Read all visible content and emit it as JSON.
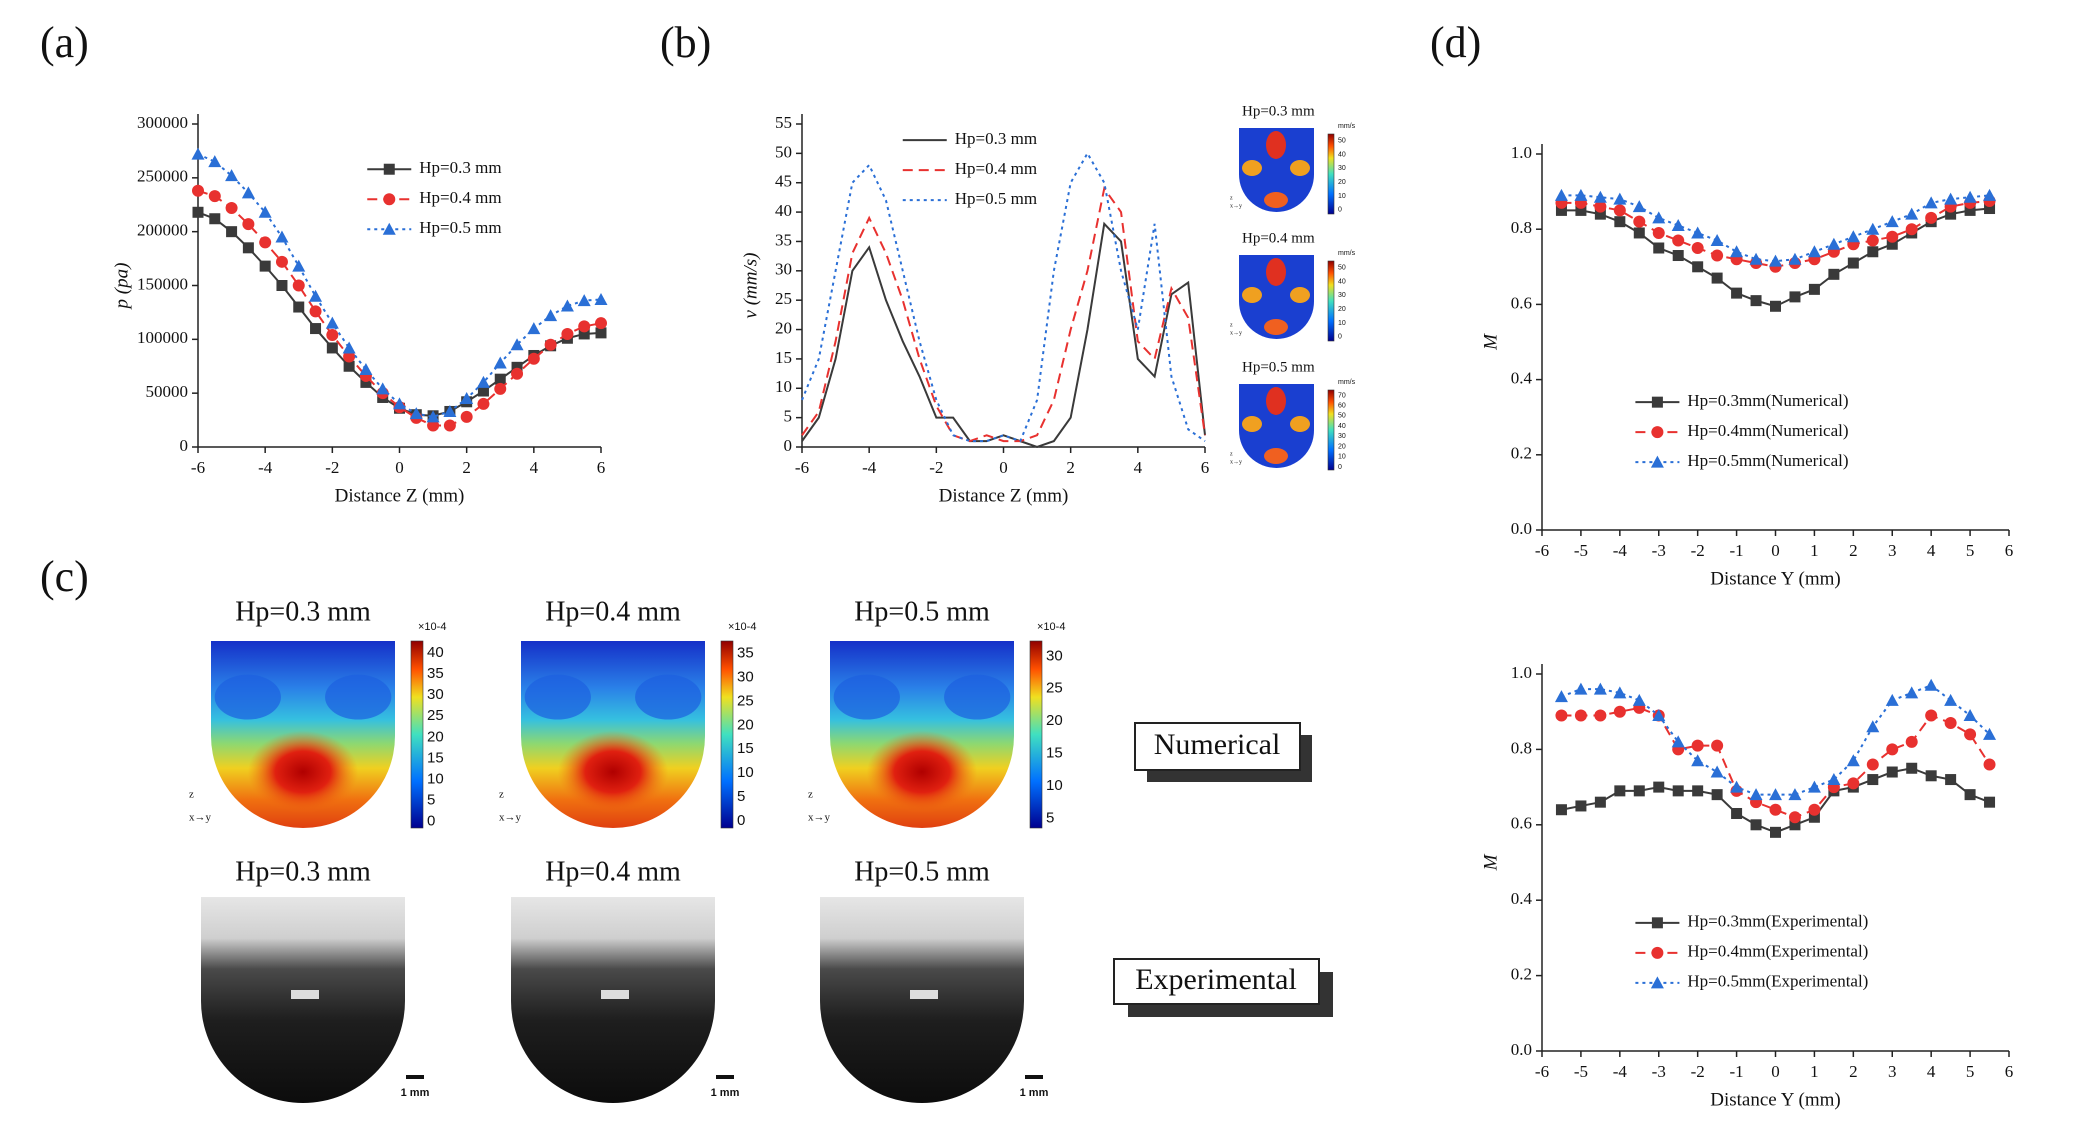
{
  "panel_labels": [
    "(a)",
    "(b)",
    "(c)",
    "(d)"
  ],
  "chart_data": [
    {
      "type": "line",
      "x_label": "Distance Z (mm)",
      "y_label": "p (pa)",
      "legend": "upper center",
      "x": [
        -6,
        -5.5,
        -5,
        -4.5,
        -4,
        -3.5,
        -3,
        -2.5,
        -2,
        -1.5,
        -1,
        -0.5,
        0,
        0.5,
        1,
        1.5,
        2,
        2.5,
        3,
        3.5,
        4,
        4.5,
        5,
        5.5,
        6
      ],
      "xlim": [
        -6,
        6
      ],
      "xticks": [
        -6,
        -4,
        -2,
        0,
        2,
        4,
        6
      ],
      "ylim": [
        0,
        300000
      ],
      "yticks": [
        0,
        50000,
        100000,
        150000,
        200000,
        250000,
        300000
      ],
      "series": [
        {
          "name": "Hp=0.3 mm",
          "color": "#3a3a3a",
          "style": "solid",
          "marker": "square",
          "values": [
            218000,
            212000,
            200000,
            185000,
            168000,
            150000,
            130000,
            110000,
            92000,
            75000,
            60000,
            46000,
            36000,
            30000,
            29000,
            33000,
            42000,
            52000,
            63000,
            74000,
            85000,
            94000,
            101000,
            105000,
            106000
          ]
        },
        {
          "name": "Hp=0.4 mm",
          "color": "#e8312f",
          "style": "dash",
          "marker": "circle",
          "values": [
            238000,
            233000,
            222000,
            207000,
            190000,
            172000,
            150000,
            126000,
            104000,
            84000,
            66000,
            50000,
            37000,
            27000,
            20000,
            20000,
            28000,
            40000,
            54000,
            68000,
            82000,
            95000,
            105000,
            112000,
            115000
          ]
        },
        {
          "name": "Hp=0.5 mm",
          "color": "#2a6fd6",
          "style": "dot",
          "marker": "triangle",
          "values": [
            272000,
            265000,
            252000,
            236000,
            218000,
            195000,
            168000,
            140000,
            115000,
            92000,
            72000,
            54000,
            40000,
            31000,
            28000,
            33000,
            45000,
            60000,
            78000,
            95000,
            110000,
            122000,
            131000,
            136000,
            137000
          ]
        }
      ]
    },
    {
      "type": "line",
      "x_label": "Distance Z (mm)",
      "y_label": "v (mm/s)",
      "legend": "upper left",
      "x": [
        -6,
        -5.5,
        -5,
        -4.5,
        -4,
        -3.5,
        -3,
        -2.5,
        -2,
        -1.5,
        -1,
        -0.5,
        0,
        0.5,
        1,
        1.5,
        2,
        2.5,
        3,
        3.5,
        4,
        4.5,
        5,
        5.5,
        6
      ],
      "xlim": [
        -6,
        6
      ],
      "xticks": [
        -6,
        -4,
        -2,
        0,
        2,
        4,
        6
      ],
      "ylim": [
        0,
        55
      ],
      "yticks": [
        0,
        5,
        10,
        15,
        20,
        25,
        30,
        35,
        40,
        45,
        50,
        55
      ],
      "series": [
        {
          "name": "Hp=0.3 mm",
          "color": "#3a3a3a",
          "style": "solid",
          "values": [
            1,
            5,
            15,
            30,
            34,
            25,
            18,
            12,
            5,
            5,
            1,
            1,
            2,
            1,
            0,
            1,
            5,
            20,
            38,
            35,
            15,
            12,
            26,
            28,
            2
          ]
        },
        {
          "name": "Hp=0.4 mm",
          "color": "#e8312f",
          "style": "dash",
          "values": [
            2,
            6,
            18,
            33,
            39,
            33,
            25,
            15,
            7,
            2,
            1,
            2,
            1,
            1,
            2,
            8,
            20,
            30,
            44,
            40,
            18,
            15,
            27,
            22,
            2
          ]
        },
        {
          "name": "Hp=0.5 mm",
          "color": "#2a6fd6",
          "style": "dot",
          "values": [
            8,
            15,
            30,
            45,
            48,
            42,
            30,
            18,
            8,
            2,
            1,
            1,
            2,
            1,
            8,
            30,
            45,
            50,
            45,
            30,
            20,
            38,
            12,
            3,
            1
          ]
        }
      ]
    },
    {
      "type": "line",
      "x_label": "Distance Y (mm)",
      "y_label": "M",
      "legend": "lower center",
      "x": [
        -5.5,
        -5,
        -4.5,
        -4,
        -3.5,
        -3,
        -2.5,
        -2,
        -1.5,
        -1,
        -0.5,
        0,
        0.5,
        1,
        1.5,
        2,
        2.5,
        3,
        3.5,
        4,
        4.5,
        5,
        5.5
      ],
      "xlim": [
        -6,
        6
      ],
      "xticks": [
        -6,
        -5,
        -4,
        -3,
        -2,
        -1,
        0,
        1,
        2,
        3,
        4,
        5,
        6
      ],
      "ylim": [
        0,
        1
      ],
      "yticks": [
        {
          "value": 0,
          "label": "0.0"
        },
        0.2,
        0.4,
        0.6,
        0.8,
        {
          "value": 1,
          "label": "1.0"
        }
      ],
      "series": [
        {
          "name": "Hp=0.3mm(Numerical)",
          "color": "#3a3a3a",
          "style": "solid",
          "marker": "square",
          "values": [
            0.85,
            0.85,
            0.84,
            0.82,
            0.79,
            0.75,
            0.73,
            0.7,
            0.67,
            0.63,
            0.61,
            0.595,
            0.62,
            0.64,
            0.68,
            0.71,
            0.74,
            0.76,
            0.79,
            0.82,
            0.84,
            0.85,
            0.855
          ]
        },
        {
          "name": "Hp=0.4mm(Numerical)",
          "color": "#e8312f",
          "style": "dash",
          "marker": "circle",
          "values": [
            0.87,
            0.87,
            0.86,
            0.85,
            0.82,
            0.79,
            0.77,
            0.75,
            0.73,
            0.72,
            0.71,
            0.7,
            0.71,
            0.72,
            0.74,
            0.76,
            0.77,
            0.78,
            0.8,
            0.83,
            0.86,
            0.87,
            0.875
          ]
        },
        {
          "name": "Hp=0.5mm(Numerical)",
          "color": "#2a6fd6",
          "style": "dot",
          "marker": "triangle",
          "values": [
            0.89,
            0.89,
            0.885,
            0.88,
            0.86,
            0.83,
            0.81,
            0.79,
            0.77,
            0.74,
            0.72,
            0.715,
            0.72,
            0.74,
            0.76,
            0.78,
            0.8,
            0.82,
            0.84,
            0.87,
            0.88,
            0.885,
            0.89
          ]
        }
      ]
    },
    {
      "type": "line",
      "x_label": "Distance Y (mm)",
      "y_label": "M",
      "legend": "lower center",
      "x": [
        -5.5,
        -5,
        -4.5,
        -4,
        -3.5,
        -3,
        -2.5,
        -2,
        -1.5,
        -1,
        -0.5,
        0,
        0.5,
        1,
        1.5,
        2,
        2.5,
        3,
        3.5,
        4,
        4.5,
        5,
        5.5
      ],
      "xlim": [
        -6,
        6
      ],
      "xticks": [
        -6,
        -5,
        -4,
        -3,
        -2,
        -1,
        0,
        1,
        2,
        3,
        4,
        5,
        6
      ],
      "ylim": [
        0,
        1
      ],
      "yticks": [
        {
          "value": 0,
          "label": "0.0"
        },
        0.2,
        0.4,
        0.6,
        0.8,
        {
          "value": 1,
          "label": "1.0"
        }
      ],
      "series": [
        {
          "name": "Hp=0.3mm(Experimental)",
          "color": "#3a3a3a",
          "style": "solid",
          "marker": "square",
          "values": [
            0.64,
            0.65,
            0.66,
            0.69,
            0.69,
            0.7,
            0.69,
            0.69,
            0.68,
            0.63,
            0.6,
            0.58,
            0.6,
            0.62,
            0.69,
            0.7,
            0.72,
            0.74,
            0.75,
            0.73,
            0.72,
            0.68,
            0.66
          ]
        },
        {
          "name": "Hp=0.4mm(Experimental)",
          "color": "#e8312f",
          "style": "dash",
          "marker": "circle",
          "values": [
            0.89,
            0.89,
            0.89,
            0.9,
            0.91,
            0.89,
            0.8,
            0.81,
            0.81,
            0.69,
            0.66,
            0.64,
            0.62,
            0.64,
            0.7,
            0.71,
            0.76,
            0.8,
            0.82,
            0.89,
            0.87,
            0.84,
            0.76
          ]
        },
        {
          "name": "Hp=0.5mm(Experimental)",
          "color": "#2a6fd6",
          "style": "dot",
          "marker": "triangle",
          "values": [
            0.94,
            0.96,
            0.96,
            0.95,
            0.93,
            0.89,
            0.82,
            0.77,
            0.74,
            0.7,
            0.68,
            0.68,
            0.68,
            0.7,
            0.72,
            0.77,
            0.86,
            0.93,
            0.95,
            0.97,
            0.93,
            0.89,
            0.84
          ]
        }
      ]
    }
  ],
  "insets_b": [
    {
      "title": "Hp=0.3 mm",
      "unit": "mm/s",
      "ticks": [
        "0",
        "10",
        "20",
        "30",
        "40",
        "50"
      ],
      "triad": "z",
      "triad_xy": "x→y"
    },
    {
      "title": "Hp=0.4 mm",
      "unit": "mm/s",
      "ticks": [
        "0",
        "10",
        "20",
        "30",
        "40",
        "50"
      ],
      "triad": "z",
      "triad_xy": "x→y"
    },
    {
      "title": "Hp=0.5 mm",
      "unit": "mm/s",
      "ticks": [
        "0",
        "10",
        "20",
        "30",
        "40",
        "50",
        "60",
        "70"
      ],
      "triad": "z",
      "triad_xy": "x→y"
    }
  ],
  "panel_c": {
    "numerical_label": "Numerical",
    "experimental_label": "Experimental",
    "numerical": [
      {
        "title": "Hp=0.3 mm",
        "scale": "×10-4",
        "ticks": [
          "0",
          "5",
          "10",
          "15",
          "20",
          "25",
          "30",
          "35",
          "40"
        ],
        "triad": "z",
        "triad_xy": "x→y"
      },
      {
        "title": "Hp=0.4 mm",
        "scale": "×10-4",
        "ticks": [
          "0",
          "5",
          "10",
          "15",
          "20",
          "25",
          "30",
          "35"
        ],
        "triad": "z",
        "triad_xy": "x→y"
      },
      {
        "title": "Hp=0.5 mm",
        "scale": "×10-4",
        "ticks": [
          "5",
          "10",
          "15",
          "20",
          "25",
          "30"
        ],
        "triad": "z",
        "triad_xy": "x→y"
      }
    ],
    "experimental": [
      {
        "title": "Hp=0.3 mm",
        "scale_bar": "1 mm"
      },
      {
        "title": "Hp=0.4 mm",
        "scale_bar": "1 mm"
      },
      {
        "title": "Hp=0.5 mm",
        "scale_bar": "1 mm"
      }
    ]
  }
}
